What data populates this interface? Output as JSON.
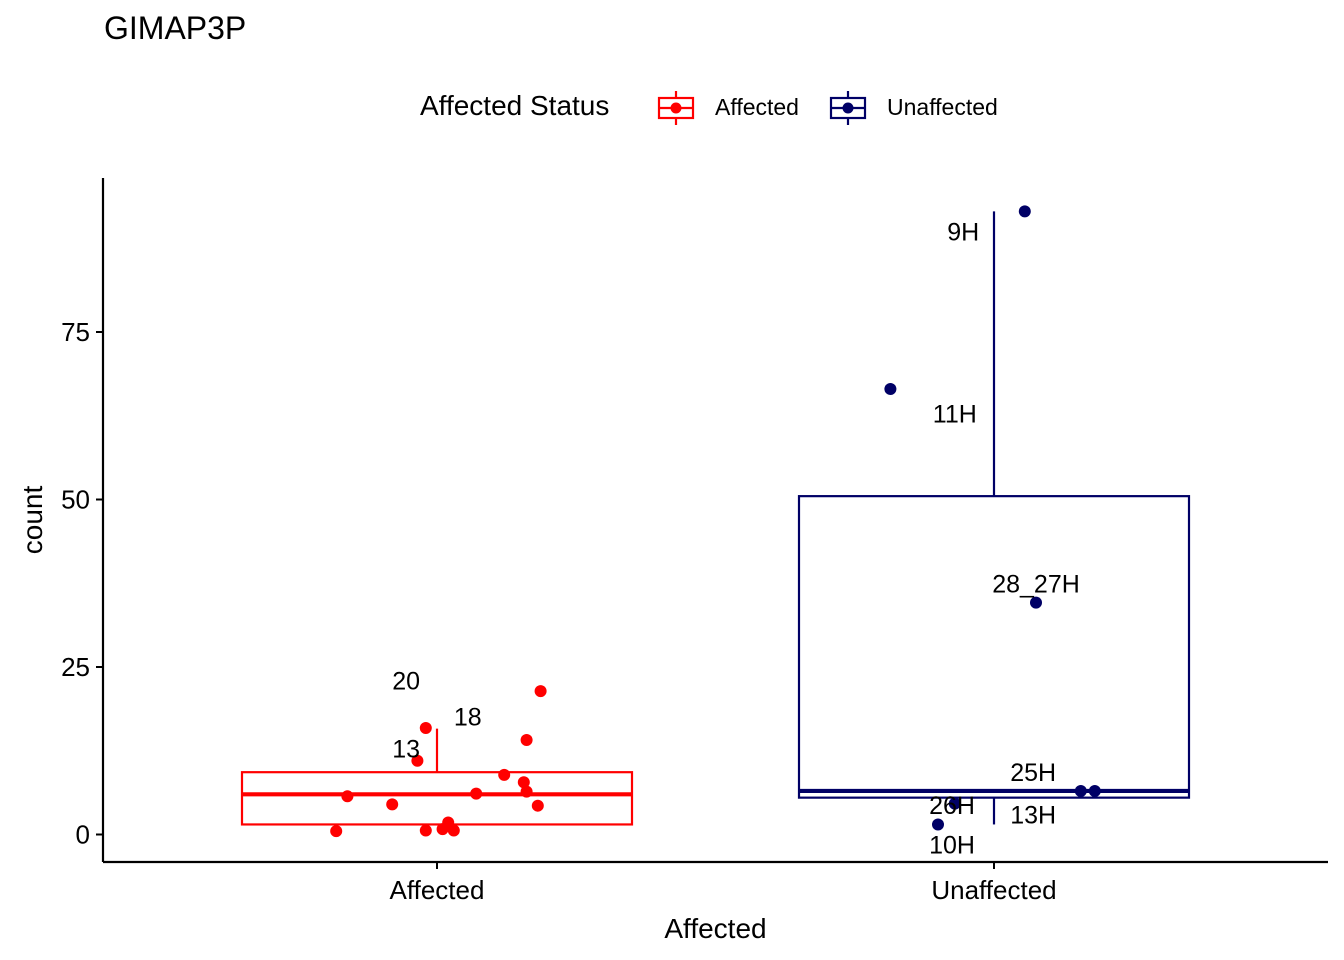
{
  "chart_data": {
    "type": "boxplot",
    "title": "GIMAP3P",
    "xlabel": "Affected",
    "ylabel": "count",
    "categories": [
      "Affected",
      "Unaffected"
    ],
    "ylim": [
      -4,
      98
    ],
    "yticks": [
      0,
      25,
      50,
      75
    ],
    "grid": false,
    "legend": {
      "title": "Affected Status",
      "position": "top",
      "entries": [
        {
          "label": "Affected",
          "color": "#FF0000"
        },
        {
          "label": "Unaffected",
          "color": "#000066"
        }
      ]
    },
    "series": [
      {
        "name": "Affected",
        "color": "#FF0000",
        "box": {
          "whisker_low": 1.5,
          "q1": 1.5,
          "median": 6.0,
          "q3": 9.3,
          "whisker_high": 15.8
        },
        "points": [
          {
            "x": -0.18,
            "y": 0.5
          },
          {
            "x": -0.16,
            "y": 5.7
          },
          {
            "x": -0.08,
            "y": 4.5
          },
          {
            "x": -0.035,
            "y": 11.0
          },
          {
            "x": -0.02,
            "y": 15.9
          },
          {
            "x": -0.02,
            "y": 0.6
          },
          {
            "x": 0.01,
            "y": 0.8
          },
          {
            "x": 0.02,
            "y": 1.8
          },
          {
            "x": 0.03,
            "y": 0.6
          },
          {
            "x": 0.07,
            "y": 6.1
          },
          {
            "x": 0.12,
            "y": 8.9
          },
          {
            "x": 0.155,
            "y": 7.8
          },
          {
            "x": 0.16,
            "y": 6.4
          },
          {
            "x": 0.16,
            "y": 14.1
          },
          {
            "x": 0.18,
            "y": 4.3
          },
          {
            "x": 0.185,
            "y": 21.4
          }
        ],
        "labels": [
          {
            "text": "20",
            "x": -0.055,
            "y": 23.0
          },
          {
            "text": "18",
            "x": 0.055,
            "y": 17.6
          },
          {
            "text": "13",
            "x": -0.055,
            "y": 12.8
          }
        ]
      },
      {
        "name": "Unaffected",
        "color": "#000066",
        "box": {
          "whisker_low": 1.5,
          "q1": 5.5,
          "median": 6.5,
          "q3": 50.5,
          "whisker_high": 93.0
        },
        "points": [
          {
            "x": -0.185,
            "y": 66.5
          },
          {
            "x": 0.055,
            "y": 93.0
          },
          {
            "x": 0.075,
            "y": 34.6
          },
          {
            "x": -0.1,
            "y": 1.5
          },
          {
            "x": -0.07,
            "y": 4.6
          },
          {
            "x": 0.155,
            "y": 6.5
          },
          {
            "x": 0.18,
            "y": 6.5
          }
        ],
        "labels": [
          {
            "text": "9H",
            "x": -0.055,
            "y": 90.0
          },
          {
            "text": "11H",
            "x": -0.07,
            "y": 62.8
          },
          {
            "text": "28_27H",
            "x": 0.075,
            "y": 37.5
          },
          {
            "text": "25H",
            "x": 0.07,
            "y": 9.3
          },
          {
            "text": "26H",
            "x": -0.075,
            "y": 4.4
          },
          {
            "text": "13H",
            "x": 0.07,
            "y": 3.0
          },
          {
            "text": "10H",
            "x": -0.075,
            "y": -1.5
          }
        ]
      }
    ]
  }
}
